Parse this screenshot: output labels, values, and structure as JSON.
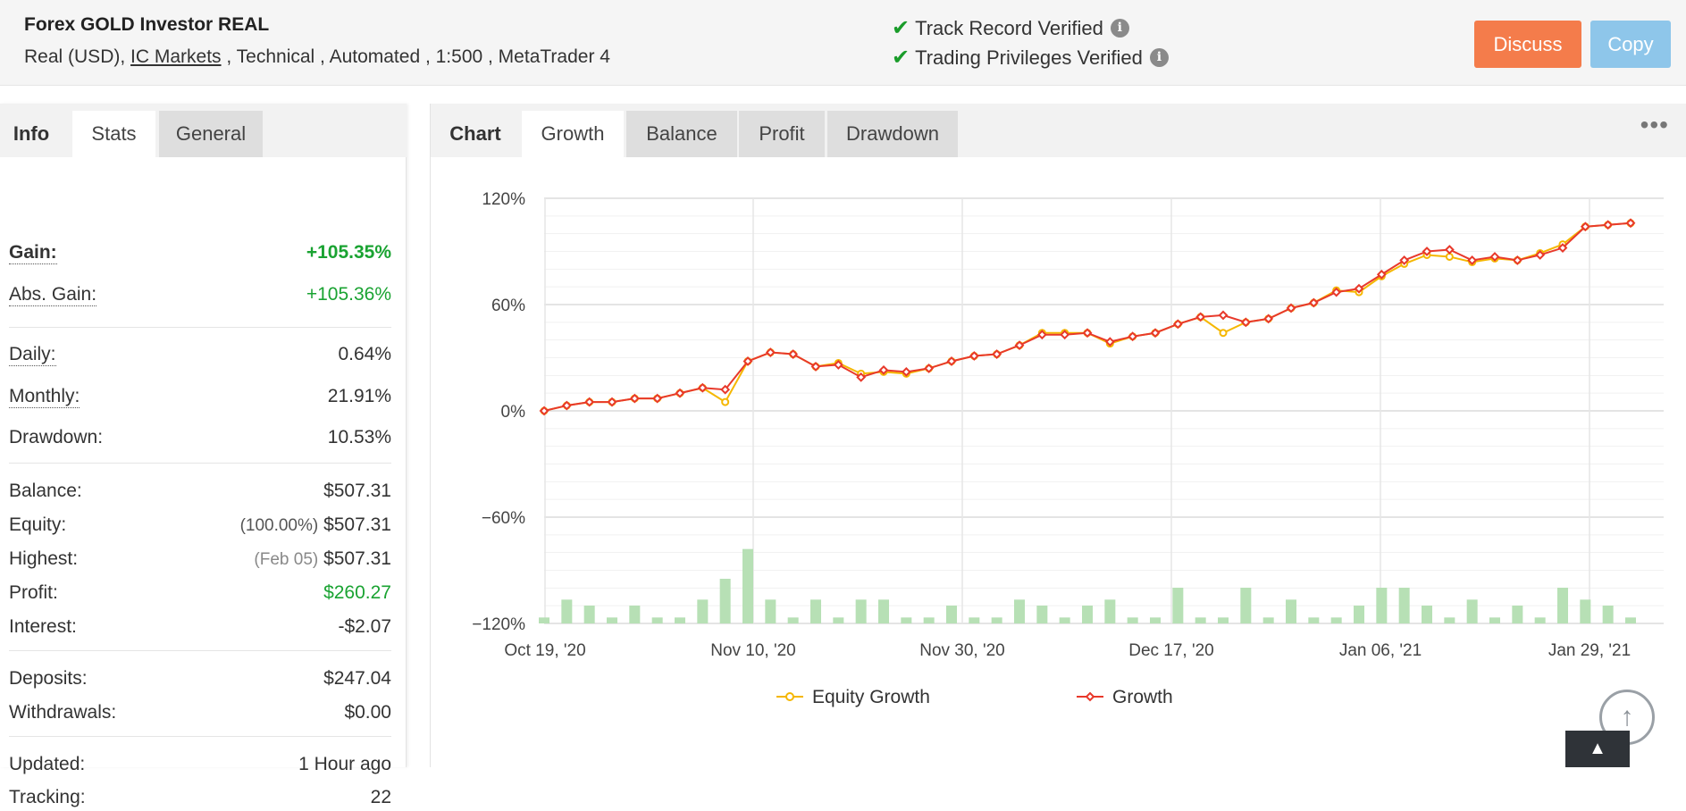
{
  "account": {
    "title": "Forex GOLD Investor REAL",
    "meta_prefix": "Real (USD), ",
    "broker_link": "IC Markets",
    "meta_suffix": " , Technical , Automated , 1:500 , MetaTrader 4"
  },
  "verification": {
    "track_record": "Track Record Verified",
    "trading_privileges": "Trading Privileges Verified"
  },
  "buttons": {
    "discuss": "Discuss",
    "copy": "Copy"
  },
  "colors": {
    "discuss": "#f47c4b",
    "copy": "#8ec6ea",
    "positive": "#1aa332",
    "growth_line": "#e8392b",
    "equity_line": "#f5b700",
    "bars": "#b7e0b5"
  },
  "left_tabs": {
    "info": "Info",
    "stats": "Stats",
    "general": "General"
  },
  "stats": {
    "gain": {
      "label": "Gain:",
      "value": "+105.35%"
    },
    "abs_gain": {
      "label": "Abs. Gain:",
      "value": "+105.36%"
    },
    "daily": {
      "label": "Daily:",
      "value": "0.64%"
    },
    "monthly": {
      "label": "Monthly:",
      "value": "21.91%"
    },
    "drawdown": {
      "label": "Drawdown:",
      "value": "10.53%"
    },
    "balance": {
      "label": "Balance:",
      "value": "$507.31"
    },
    "equity": {
      "label": "Equity:",
      "sub": "(100.00%)",
      "value": "$507.31"
    },
    "highest": {
      "label": "Highest:",
      "sub": "(Feb 05)",
      "value": "$507.31"
    },
    "profit": {
      "label": "Profit:",
      "value": "$260.27"
    },
    "interest": {
      "label": "Interest:",
      "value": "-$2.07"
    },
    "deposits": {
      "label": "Deposits:",
      "value": "$247.04"
    },
    "withdrawals": {
      "label": "Withdrawals:",
      "value": "$0.00"
    },
    "updated": {
      "label": "Updated:",
      "value": "1 Hour ago"
    },
    "tracking": {
      "label": "Tracking:",
      "value": "22"
    }
  },
  "chart_tabs": {
    "chart": "Chart",
    "growth": "Growth",
    "balance": "Balance",
    "profit": "Profit",
    "drawdown": "Drawdown"
  },
  "more_icon": "more-dots-icon",
  "chart_data": {
    "type": "line",
    "y_ticks": [
      "120%",
      "60%",
      "0%",
      "−60%",
      "−120%"
    ],
    "ylim": [
      -120,
      120
    ],
    "x_ticks": [
      "Oct 19, '20",
      "Nov 10, '20",
      "Nov 30, '20",
      "Dec 17, '20",
      "Jan 06, '21",
      "Jan 29, '21"
    ],
    "grid": true,
    "legend_position": "bottom",
    "series": [
      {
        "name": "Equity Growth",
        "values": [
          0,
          3,
          5,
          5,
          7,
          7,
          10,
          13,
          5,
          28,
          33,
          32,
          25,
          27,
          21,
          22,
          21,
          24,
          28,
          31,
          32,
          37,
          44,
          44,
          44,
          38,
          42,
          44,
          49,
          53,
          44,
          50,
          52,
          58,
          61,
          68,
          67,
          76,
          83,
          88,
          87,
          84,
          86,
          85,
          89,
          94,
          104,
          105,
          106
        ]
      },
      {
        "name": "Growth",
        "values": [
          0,
          3,
          5,
          5,
          7,
          7,
          10,
          13,
          12,
          28,
          33,
          32,
          25,
          26,
          19,
          23,
          22,
          24,
          28,
          31,
          32,
          37,
          43,
          43,
          44,
          39,
          42,
          44,
          49,
          53,
          54,
          50,
          52,
          58,
          61,
          67,
          69,
          77,
          85,
          90,
          91,
          85,
          87,
          85,
          88,
          92,
          104,
          105,
          106
        ]
      }
    ],
    "bars": [
      2,
      8,
      6,
      2,
      6,
      2,
      2,
      8,
      15,
      25,
      8,
      2,
      8,
      2,
      8,
      8,
      2,
      2,
      6,
      2,
      2,
      8,
      6,
      2,
      6,
      8,
      2,
      2,
      12,
      2,
      2,
      12,
      2,
      8,
      2,
      2,
      6,
      12,
      12,
      6,
      2,
      8,
      2,
      6,
      2,
      12,
      8,
      6,
      2
    ]
  },
  "scroll_icons": {
    "circle": "arrow-up-circle-icon",
    "back_top": "chevron-up-icon"
  },
  "scroll_glyphs": {
    "circle": "↑",
    "back_top": "▲"
  }
}
